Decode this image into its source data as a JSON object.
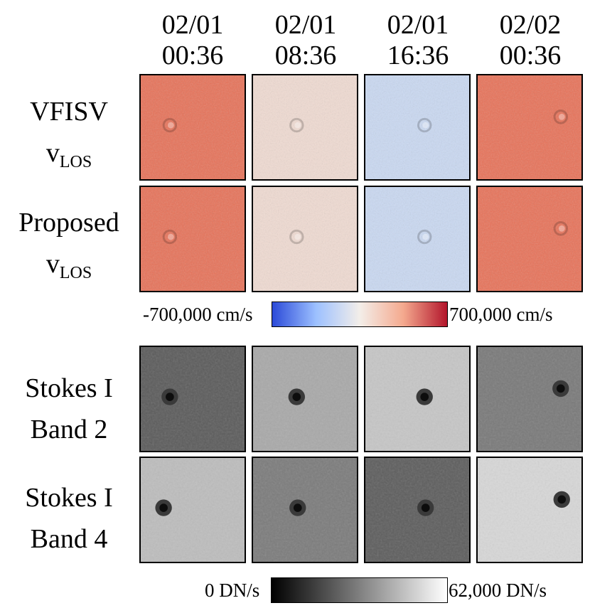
{
  "columns": [
    {
      "date": "02/01",
      "time": "00:36"
    },
    {
      "date": "02/01",
      "time": "08:36"
    },
    {
      "date": "02/01",
      "time": "16:36"
    },
    {
      "date": "02/02",
      "time": "00:36"
    }
  ],
  "rows": [
    {
      "line1": "VFISV",
      "line2_main": "v",
      "line2_sub": "LOS",
      "kind": "velocity"
    },
    {
      "line1": "Proposed",
      "line2_main": "v",
      "line2_sub": "LOS",
      "kind": "velocity"
    },
    {
      "line1": "Stokes I",
      "line2": "Band 2",
      "kind": "intensity"
    },
    {
      "line1": "Stokes I",
      "line2": "Band 4",
      "kind": "intensity"
    }
  ],
  "velocity_colorbar": {
    "min_label": "-700,000 cm/s",
    "max_label": "700,000 cm/s",
    "colors": [
      "#2b4ad8",
      "#9cc0ff",
      "#f3eee9",
      "#f4a98e",
      "#b3152b"
    ]
  },
  "intensity_colorbar": {
    "min_label": "0 DN/s",
    "max_label": "62,000 DN/s",
    "colors": [
      "#000000",
      "#ffffff"
    ]
  },
  "panel_colors": {
    "velocity": [
      "#e7735a",
      "#f0dbd2",
      "#cad9f2",
      "#e8735a"
    ],
    "band2": [
      "#5c5c5c",
      "#a9a9a9",
      "#c6c6c6",
      "#7a7a7a"
    ],
    "band4": [
      "#bdbdbd",
      "#7c7c7c",
      "#5e5e5e",
      "#d7d7d7"
    ]
  }
}
